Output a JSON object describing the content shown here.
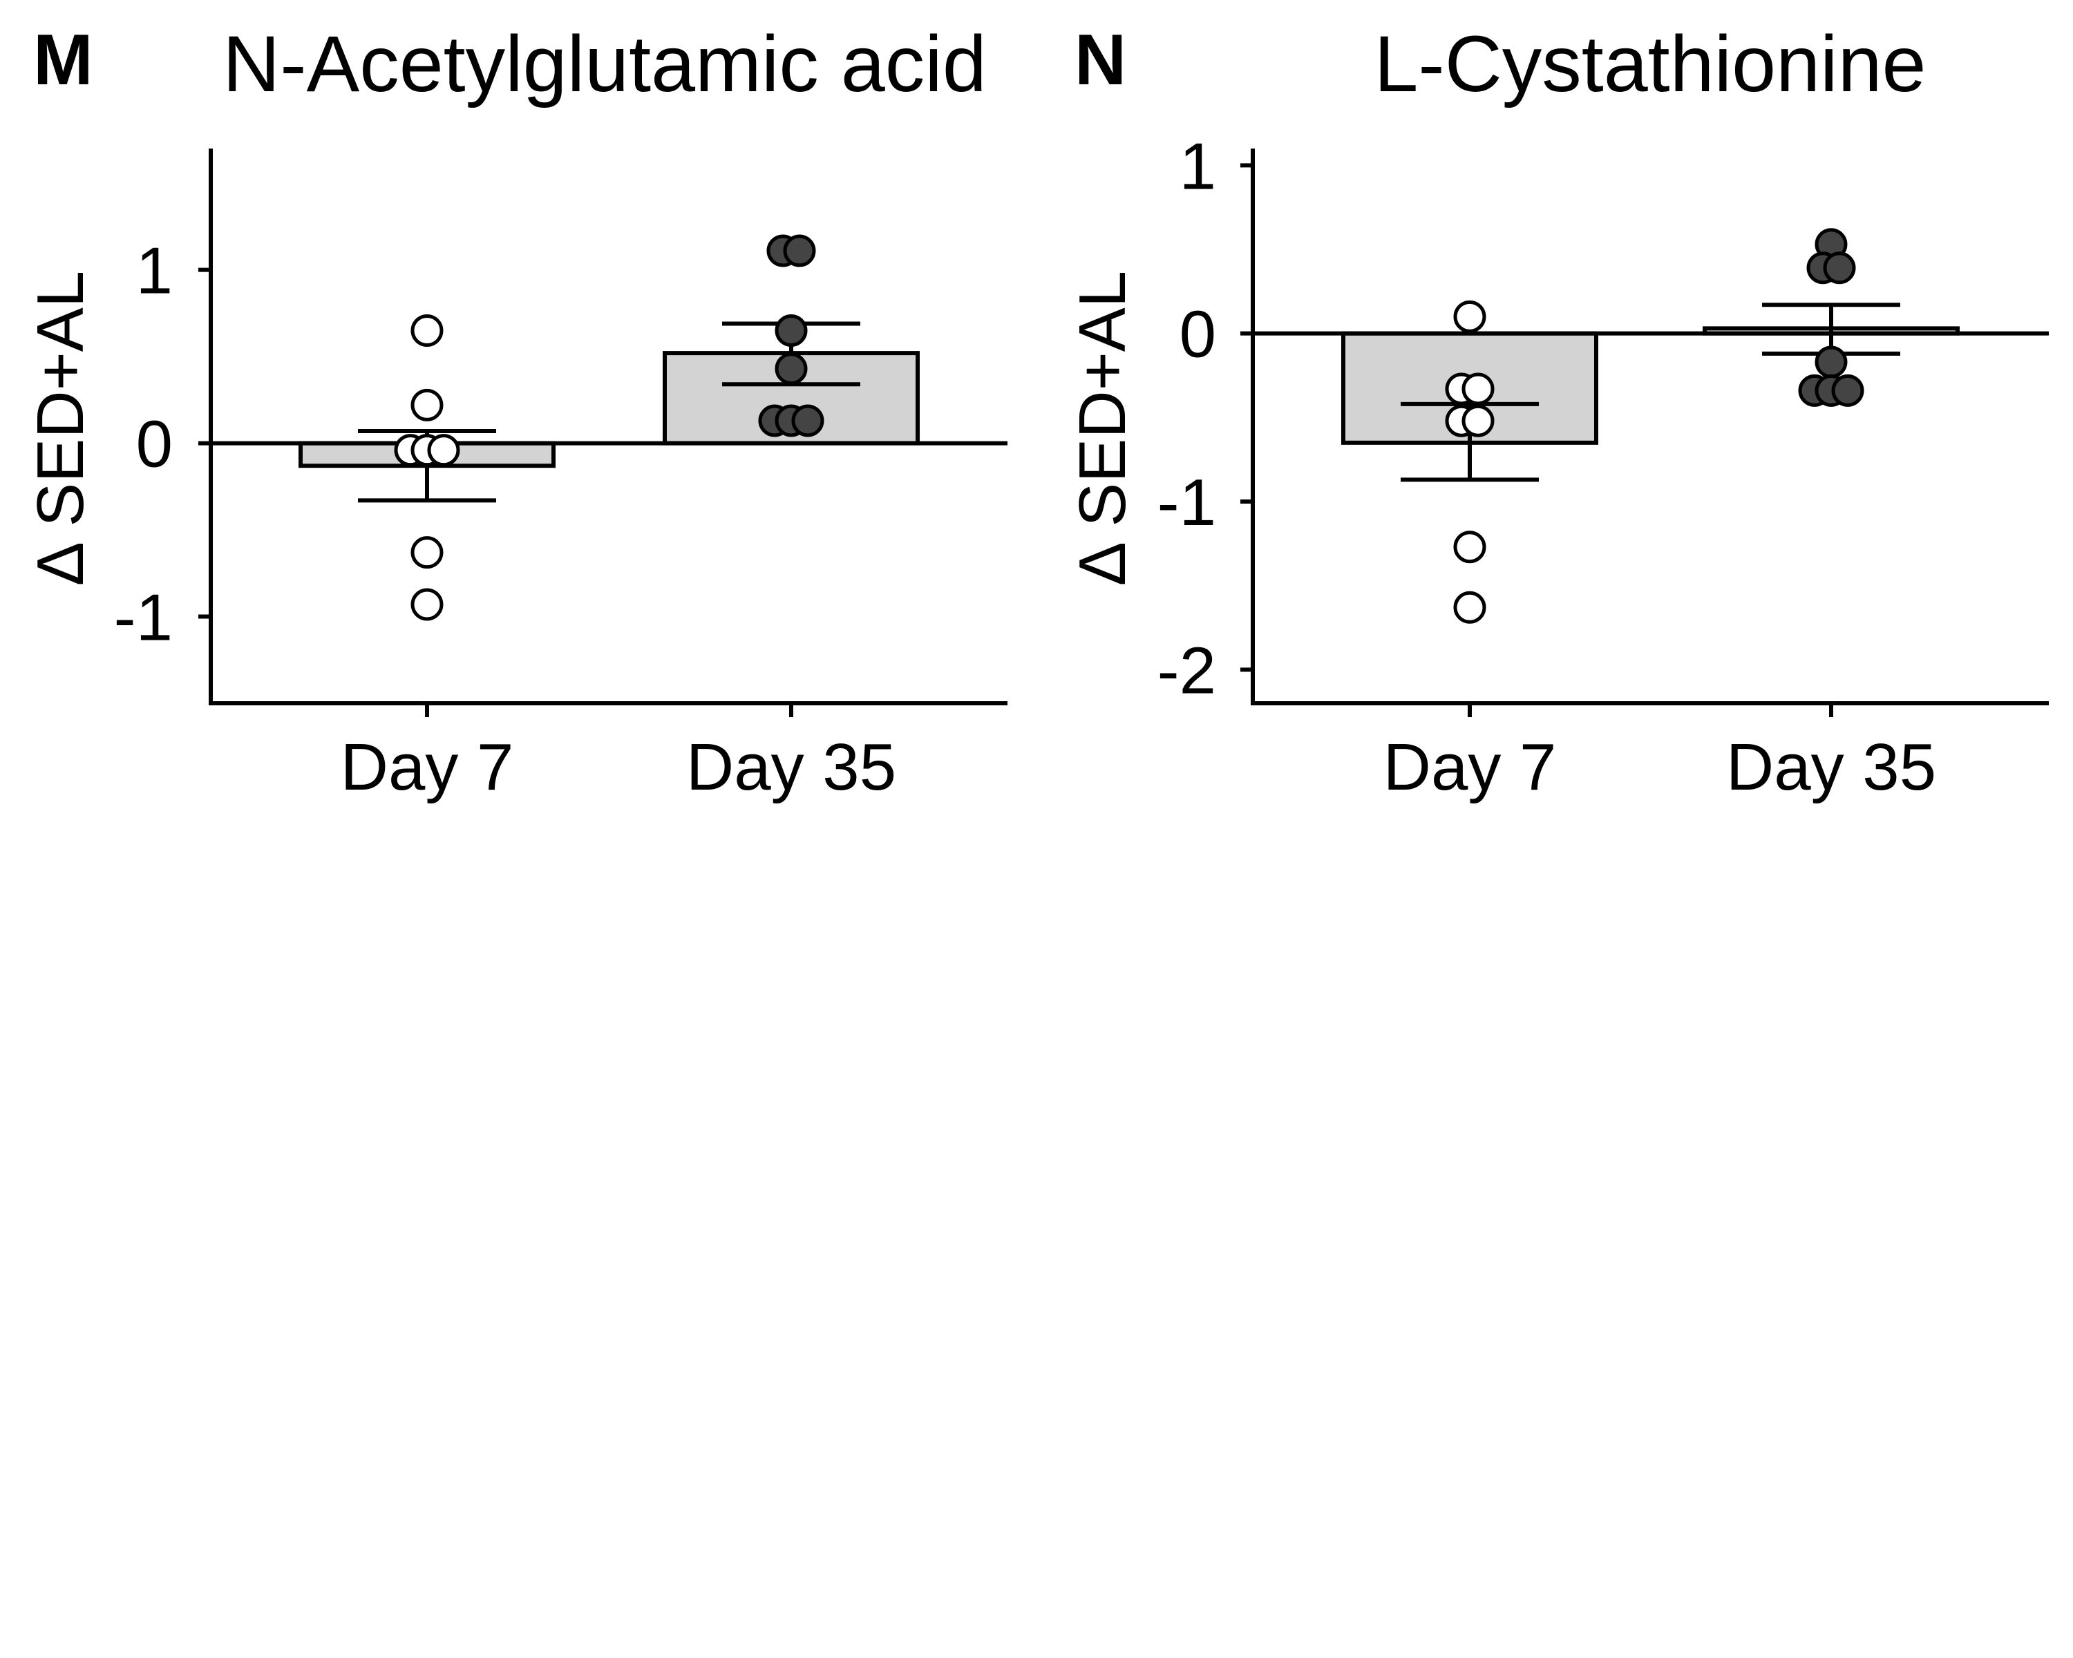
{
  "figure": {
    "background": "#ffffff",
    "bar_fill": "#d3d3d3",
    "open_point_fill": "#ffffff",
    "filled_point_fill": "#444444",
    "stroke_color": "#000000"
  },
  "chart_data": [
    {
      "type": "bar",
      "panel_label": "M",
      "title": "N-Acetylglutamic acid",
      "ylabel": "Δ SED+AL",
      "xlabel": "",
      "categories": [
        "Day 7",
        "Day 35"
      ],
      "ylim": [
        -1.5,
        1.7
      ],
      "yticks": [
        -1,
        0,
        1
      ],
      "ytick_labels": [
        "-1",
        "0",
        "1"
      ],
      "reference_line": 0,
      "grid": false,
      "legend": "none",
      "bars": [
        {
          "category": "Day 7",
          "mean": -0.13,
          "error_low": -0.33,
          "error_high": 0.07
        },
        {
          "category": "Day 35",
          "mean": 0.52,
          "error_low": 0.34,
          "error_high": 0.69
        }
      ],
      "points": [
        {
          "category": "Day 7",
          "style": "open",
          "values": [
            0.65,
            0.22,
            -0.04,
            -0.04,
            -0.04,
            -0.63,
            -0.93
          ],
          "offsets": [
            0,
            0,
            -0.2,
            0,
            0.2,
            0,
            0
          ]
        },
        {
          "category": "Day 35",
          "style": "filled",
          "values": [
            1.11,
            1.11,
            0.65,
            0.43,
            0.13,
            0.13,
            0.13
          ],
          "offsets": [
            -0.1,
            0.1,
            0,
            0,
            -0.2,
            0,
            0.2
          ]
        }
      ]
    },
    {
      "type": "bar",
      "panel_label": "N",
      "title": "L-Cystathionine",
      "ylabel": "Δ SED+AL",
      "xlabel": "",
      "categories": [
        "Day 7",
        "Day 35"
      ],
      "ylim": [
        -2.2,
        1.1
      ],
      "yticks": [
        -2,
        -1,
        0,
        1
      ],
      "ytick_labels": [
        "-2",
        "-1",
        "0",
        "1"
      ],
      "reference_line": 0,
      "grid": false,
      "legend": "none",
      "bars": [
        {
          "category": "Day 7",
          "mean": -0.65,
          "error_low": -0.87,
          "error_high": -0.42
        },
        {
          "category": "Day 35",
          "mean": 0.03,
          "error_low": -0.12,
          "error_high": 0.17
        }
      ],
      "points": [
        {
          "category": "Day 7",
          "style": "open",
          "values": [
            0.1,
            -0.33,
            -0.33,
            -0.52,
            -0.52,
            -1.27,
            -1.63
          ],
          "offsets": [
            0,
            -0.1,
            0.1,
            -0.1,
            0.1,
            0,
            0
          ]
        },
        {
          "category": "Day 35",
          "style": "filled",
          "values": [
            0.53,
            0.39,
            0.39,
            -0.17,
            -0.34,
            -0.34,
            -0.34
          ],
          "offsets": [
            0,
            -0.1,
            0.1,
            0,
            -0.2,
            0,
            0.2
          ]
        }
      ]
    }
  ]
}
